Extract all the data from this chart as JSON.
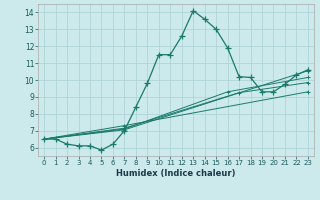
{
  "xlabel": "Humidex (Indice chaleur)",
  "bg_color": "#cce9ec",
  "grid_color": "#b0d4d8",
  "line_color": "#1a7a6a",
  "xlim": [
    -0.5,
    23.5
  ],
  "ylim": [
    5.5,
    14.5
  ],
  "xticks": [
    0,
    1,
    2,
    3,
    4,
    5,
    6,
    7,
    8,
    9,
    10,
    11,
    12,
    13,
    14,
    15,
    16,
    17,
    18,
    19,
    20,
    21,
    22,
    23
  ],
  "yticks": [
    6,
    7,
    8,
    9,
    10,
    11,
    12,
    13,
    14
  ],
  "main_line": {
    "x": [
      0,
      1,
      2,
      3,
      4,
      5,
      6,
      7,
      8,
      9,
      10,
      11,
      12,
      13,
      14,
      15,
      16,
      17,
      18,
      19,
      20,
      21,
      22,
      23
    ],
    "y": [
      6.5,
      6.5,
      6.2,
      6.1,
      6.1,
      5.85,
      6.2,
      7.0,
      8.4,
      9.8,
      11.5,
      11.5,
      12.6,
      14.1,
      13.6,
      13.0,
      11.9,
      10.2,
      10.15,
      9.3,
      9.3,
      9.75,
      10.3,
      10.6
    ]
  },
  "bundle_lines": [
    {
      "x": [
        0,
        7,
        23
      ],
      "y": [
        6.5,
        7.05,
        10.55
      ]
    },
    {
      "x": [
        0,
        7,
        16,
        23
      ],
      "y": [
        6.5,
        7.1,
        9.3,
        10.15
      ]
    },
    {
      "x": [
        0,
        7,
        17,
        23
      ],
      "y": [
        6.5,
        7.15,
        9.25,
        9.85
      ]
    },
    {
      "x": [
        0,
        7,
        23
      ],
      "y": [
        6.5,
        7.3,
        9.3
      ]
    }
  ]
}
